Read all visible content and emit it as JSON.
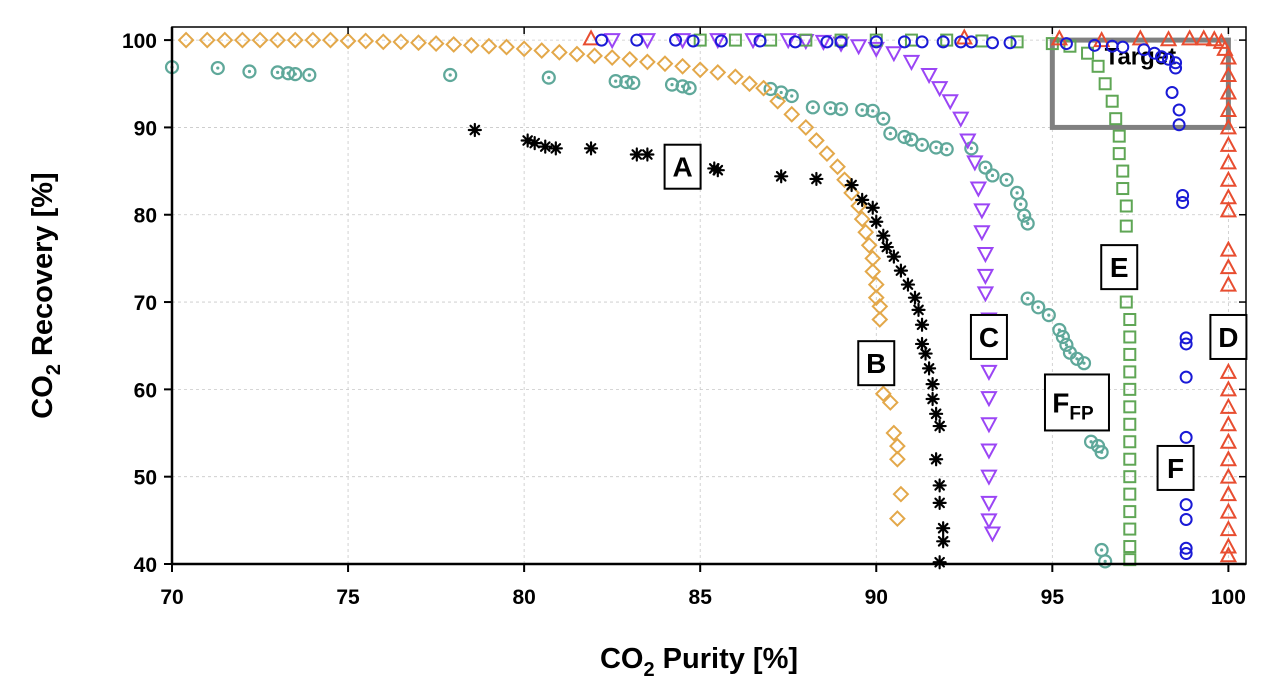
{
  "chart_data": {
    "type": "scatter",
    "xlabel": "CO₂ Purity [%]",
    "ylabel": "CO₂ Recovery [%]",
    "xlim": [
      70,
      100.5
    ],
    "ylim": [
      40,
      101.5
    ],
    "xticks": [
      70,
      75,
      80,
      85,
      90,
      95,
      100
    ],
    "yticks": [
      40,
      50,
      60,
      70,
      80,
      90,
      100
    ],
    "grid": true,
    "legend": "none",
    "target_region": {
      "label": "Target",
      "x": [
        95,
        100
      ],
      "y": [
        90,
        100
      ],
      "color": "#808080"
    },
    "series": [
      {
        "label": "A",
        "marker": "asterisk",
        "color": "#000000",
        "label_pos": [
          84.5,
          85.5
        ],
        "points": [
          [
            78.6,
            89.7
          ],
          [
            80.1,
            88.5
          ],
          [
            80.3,
            88.2
          ],
          [
            80.6,
            87.8
          ],
          [
            80.9,
            87.6
          ],
          [
            81.9,
            87.6
          ],
          [
            83.2,
            86.9
          ],
          [
            83.5,
            86.9
          ],
          [
            85.4,
            85.3
          ],
          [
            85.5,
            85.1
          ],
          [
            87.3,
            84.4
          ],
          [
            88.3,
            84.1
          ],
          [
            89.3,
            83.4
          ],
          [
            89.6,
            81.7
          ],
          [
            89.9,
            80.8
          ],
          [
            90.0,
            79.2
          ],
          [
            90.2,
            77.6
          ],
          [
            90.3,
            76.3
          ],
          [
            90.5,
            75.2
          ],
          [
            90.7,
            73.6
          ],
          [
            90.9,
            72.0
          ],
          [
            91.1,
            70.5
          ],
          [
            91.2,
            69.1
          ],
          [
            91.3,
            67.4
          ],
          [
            91.3,
            65.2
          ],
          [
            91.4,
            64.1
          ],
          [
            91.5,
            62.4
          ],
          [
            91.6,
            60.6
          ],
          [
            91.6,
            58.9
          ],
          [
            91.7,
            57.2
          ],
          [
            91.8,
            55.8
          ],
          [
            91.7,
            52.0
          ],
          [
            91.8,
            49.0
          ],
          [
            91.8,
            47.0
          ],
          [
            91.9,
            44.1
          ],
          [
            91.9,
            42.6
          ],
          [
            91.8,
            40.2
          ]
        ]
      },
      {
        "label": "B",
        "marker": "diamond",
        "color": "#E3A84A",
        "label_pos": [
          90.0,
          63.0
        ],
        "points": [
          [
            70.4,
            100
          ],
          [
            71.0,
            100
          ],
          [
            71.5,
            100
          ],
          [
            72.0,
            100
          ],
          [
            72.5,
            100
          ],
          [
            73.0,
            100
          ],
          [
            73.5,
            100
          ],
          [
            74.0,
            100
          ],
          [
            74.5,
            100
          ],
          [
            75.0,
            99.9
          ],
          [
            75.5,
            99.9
          ],
          [
            76.0,
            99.8
          ],
          [
            76.5,
            99.8
          ],
          [
            77.0,
            99.7
          ],
          [
            77.5,
            99.6
          ],
          [
            78.0,
            99.5
          ],
          [
            78.5,
            99.4
          ],
          [
            79.0,
            99.3
          ],
          [
            79.5,
            99.2
          ],
          [
            80.0,
            99.0
          ],
          [
            80.5,
            98.8
          ],
          [
            81.0,
            98.6
          ],
          [
            81.5,
            98.4
          ],
          [
            82.0,
            98.2
          ],
          [
            82.5,
            98.0
          ],
          [
            83.0,
            97.8
          ],
          [
            83.5,
            97.5
          ],
          [
            84.0,
            97.3
          ],
          [
            84.5,
            97.0
          ],
          [
            85.0,
            96.6
          ],
          [
            85.5,
            96.3
          ],
          [
            86.0,
            95.8
          ],
          [
            86.4,
            95.0
          ],
          [
            86.8,
            94.5
          ],
          [
            87.2,
            93.0
          ],
          [
            87.6,
            91.5
          ],
          [
            88.0,
            90.0
          ],
          [
            88.3,
            88.5
          ],
          [
            88.6,
            87.0
          ],
          [
            88.9,
            85.5
          ],
          [
            89.1,
            84.0
          ],
          [
            89.3,
            82.5
          ],
          [
            89.5,
            81.0
          ],
          [
            89.6,
            79.5
          ],
          [
            89.7,
            78.0
          ],
          [
            89.8,
            76.5
          ],
          [
            89.9,
            75.0
          ],
          [
            89.9,
            73.5
          ],
          [
            90.0,
            72.0
          ],
          [
            90.0,
            70.5
          ],
          [
            90.1,
            69.5
          ],
          [
            90.1,
            68.0
          ],
          [
            90.2,
            59.5
          ],
          [
            90.4,
            58.5
          ],
          [
            90.5,
            55.0
          ],
          [
            90.6,
            53.5
          ],
          [
            90.6,
            52.0
          ],
          [
            90.7,
            48.0
          ],
          [
            90.6,
            45.2
          ]
        ]
      },
      {
        "label": "C",
        "marker": "triangle-down",
        "color": "#9B45F5",
        "label_pos": [
          93.2,
          66.0
        ],
        "points": [
          [
            82.5,
            100
          ],
          [
            83.5,
            100
          ],
          [
            84.5,
            100
          ],
          [
            85.5,
            100
          ],
          [
            86.5,
            100
          ],
          [
            87.5,
            100
          ],
          [
            88.0,
            99.9
          ],
          [
            88.5,
            99.8
          ],
          [
            89.0,
            99.6
          ],
          [
            89.5,
            99.3
          ],
          [
            90.0,
            99.0
          ],
          [
            90.5,
            98.5
          ],
          [
            91.0,
            97.5
          ],
          [
            91.5,
            96.0
          ],
          [
            91.8,
            94.5
          ],
          [
            92.1,
            93.0
          ],
          [
            92.4,
            91.0
          ],
          [
            92.6,
            88.5
          ],
          [
            92.8,
            86.0
          ],
          [
            92.9,
            83.0
          ],
          [
            93.0,
            80.5
          ],
          [
            93.0,
            78.0
          ],
          [
            93.1,
            75.5
          ],
          [
            93.1,
            73.0
          ],
          [
            93.1,
            71.0
          ],
          [
            93.2,
            68.0
          ],
          [
            93.2,
            65.0
          ],
          [
            93.2,
            62.0
          ],
          [
            93.2,
            59.0
          ],
          [
            93.2,
            56.0
          ],
          [
            93.2,
            53.0
          ],
          [
            93.2,
            50.0
          ],
          [
            93.2,
            47.0
          ],
          [
            93.2,
            45.0
          ],
          [
            93.3,
            43.5
          ]
        ]
      },
      {
        "label": "D",
        "marker": "triangle-up",
        "color": "#E84D30",
        "label_pos": [
          100.0,
          66.0
        ],
        "points": [
          [
            81.9,
            100.2
          ],
          [
            92.5,
            100.3
          ],
          [
            95.2,
            100.2
          ],
          [
            96.4,
            100
          ],
          [
            97.5,
            100.2
          ],
          [
            98.3,
            100.1
          ],
          [
            98.9,
            100.2
          ],
          [
            99.3,
            100.2
          ],
          [
            99.6,
            100.1
          ],
          [
            99.8,
            99.8
          ],
          [
            99.9,
            99.0
          ],
          [
            100.0,
            98.0
          ],
          [
            100.0,
            96.0
          ],
          [
            100.0,
            94.0
          ],
          [
            100.0,
            92.0
          ],
          [
            100.0,
            90.0
          ],
          [
            100.0,
            88.0
          ],
          [
            100.0,
            86.0
          ],
          [
            100.0,
            84.0
          ],
          [
            100.0,
            82.0
          ],
          [
            100.0,
            80.5
          ],
          [
            100.0,
            76.0
          ],
          [
            100.0,
            74.0
          ],
          [
            100.0,
            72.0
          ],
          [
            100.0,
            66.0
          ],
          [
            100.0,
            62.0
          ],
          [
            100.0,
            60.0
          ],
          [
            100.0,
            58.0
          ],
          [
            100.0,
            56.0
          ],
          [
            100.0,
            54.0
          ],
          [
            100.0,
            52.0
          ],
          [
            100.0,
            50.0
          ],
          [
            100.0,
            48.0
          ],
          [
            100.0,
            46.0
          ],
          [
            100.0,
            44.0
          ],
          [
            100.0,
            42.0
          ],
          [
            100.0,
            41.0
          ]
        ]
      },
      {
        "label": "E",
        "marker": "square",
        "color": "#5FA655",
        "label_pos": [
          96.9,
          74.0
        ],
        "points": [
          [
            85.0,
            100
          ],
          [
            86.0,
            100
          ],
          [
            87.0,
            100
          ],
          [
            88.0,
            100
          ],
          [
            89.0,
            100
          ],
          [
            90.0,
            100
          ],
          [
            91.0,
            100
          ],
          [
            92.0,
            100
          ],
          [
            93.0,
            99.9
          ],
          [
            94.0,
            99.8
          ],
          [
            95.0,
            99.6
          ],
          [
            95.5,
            99.3
          ],
          [
            96.0,
            98.5
          ],
          [
            96.3,
            97.0
          ],
          [
            96.5,
            95.0
          ],
          [
            96.7,
            93.0
          ],
          [
            96.8,
            91.0
          ],
          [
            96.9,
            89.0
          ],
          [
            96.9,
            87.0
          ],
          [
            97.0,
            85.0
          ],
          [
            97.0,
            83.0
          ],
          [
            97.1,
            81.0
          ],
          [
            97.1,
            78.7
          ],
          [
            97.1,
            70.0
          ],
          [
            97.2,
            68.0
          ],
          [
            97.2,
            66.0
          ],
          [
            97.2,
            64.0
          ],
          [
            97.2,
            62.0
          ],
          [
            97.2,
            60.0
          ],
          [
            97.2,
            58.0
          ],
          [
            97.2,
            56.0
          ],
          [
            97.2,
            54.0
          ],
          [
            97.2,
            52.0
          ],
          [
            97.2,
            50.0
          ],
          [
            97.2,
            48.0
          ],
          [
            97.2,
            46.0
          ],
          [
            97.2,
            44.0
          ],
          [
            97.2,
            42.0
          ],
          [
            97.2,
            40.5
          ]
        ]
      },
      {
        "label": "F",
        "marker": "circle",
        "color": "#1A1AD6",
        "label_pos": [
          98.5,
          51.0
        ],
        "points": [
          [
            82.2,
            100
          ],
          [
            83.2,
            100
          ],
          [
            84.3,
            100
          ],
          [
            84.8,
            99.9
          ],
          [
            85.6,
            99.9
          ],
          [
            86.7,
            99.9
          ],
          [
            87.7,
            99.8
          ],
          [
            88.6,
            99.8
          ],
          [
            89.0,
            99.8
          ],
          [
            90.0,
            99.8
          ],
          [
            90.8,
            99.8
          ],
          [
            91.3,
            99.8
          ],
          [
            91.9,
            99.8
          ],
          [
            92.4,
            99.8
          ],
          [
            92.7,
            99.8
          ],
          [
            93.3,
            99.7
          ],
          [
            93.8,
            99.7
          ],
          [
            95.4,
            99.6
          ],
          [
            96.2,
            99.4
          ],
          [
            96.7,
            99.3
          ],
          [
            97.0,
            99.2
          ],
          [
            97.6,
            98.9
          ],
          [
            97.9,
            98.5
          ],
          [
            98.1,
            98.1
          ],
          [
            98.3,
            97.8
          ],
          [
            98.5,
            97.4
          ],
          [
            98.5,
            96.8
          ],
          [
            98.4,
            94.0
          ],
          [
            98.6,
            92.0
          ],
          [
            98.6,
            90.3
          ],
          [
            98.7,
            82.2
          ],
          [
            98.7,
            81.4
          ],
          [
            98.8,
            65.9
          ],
          [
            98.8,
            65.2
          ],
          [
            98.8,
            61.4
          ],
          [
            98.8,
            54.5
          ],
          [
            98.8,
            46.8
          ],
          [
            98.8,
            45.1
          ],
          [
            98.8,
            41.8
          ],
          [
            98.8,
            41.2
          ]
        ]
      },
      {
        "label": "F",
        "label_sub": "FP",
        "marker": "circle-dot",
        "color": "#5FA89A",
        "label_pos": [
          95.7,
          58.5
        ],
        "points": [
          [
            70.0,
            96.9
          ],
          [
            71.3,
            96.8
          ],
          [
            72.2,
            96.4
          ],
          [
            73.0,
            96.3
          ],
          [
            73.3,
            96.2
          ],
          [
            73.5,
            96.1
          ],
          [
            73.9,
            96.0
          ],
          [
            77.9,
            96.0
          ],
          [
            80.7,
            95.7
          ],
          [
            82.6,
            95.3
          ],
          [
            82.9,
            95.2
          ],
          [
            83.1,
            95.1
          ],
          [
            84.2,
            94.9
          ],
          [
            84.5,
            94.7
          ],
          [
            84.7,
            94.5
          ],
          [
            87.0,
            94.4
          ],
          [
            87.3,
            94.0
          ],
          [
            87.6,
            93.6
          ],
          [
            88.2,
            92.3
          ],
          [
            88.7,
            92.2
          ],
          [
            89.0,
            92.1
          ],
          [
            89.6,
            92.0
          ],
          [
            89.9,
            91.9
          ],
          [
            90.2,
            91.0
          ],
          [
            90.4,
            89.3
          ],
          [
            90.8,
            88.9
          ],
          [
            91.0,
            88.6
          ],
          [
            91.3,
            88.0
          ],
          [
            91.7,
            87.7
          ],
          [
            92.0,
            87.5
          ],
          [
            92.7,
            87.6
          ],
          [
            93.1,
            85.4
          ],
          [
            93.3,
            84.5
          ],
          [
            93.7,
            84.0
          ],
          [
            94.0,
            82.5
          ],
          [
            94.1,
            81.2
          ],
          [
            94.2,
            79.9
          ],
          [
            94.3,
            79.0
          ],
          [
            94.3,
            70.4
          ],
          [
            94.6,
            69.4
          ],
          [
            94.9,
            68.5
          ],
          [
            95.2,
            66.8
          ],
          [
            95.3,
            66.0
          ],
          [
            95.4,
            65.1
          ],
          [
            95.5,
            64.2
          ],
          [
            95.7,
            63.5
          ],
          [
            95.9,
            63.0
          ],
          [
            95.9,
            56.0
          ],
          [
            96.1,
            54.0
          ],
          [
            96.3,
            53.5
          ],
          [
            96.4,
            52.8
          ],
          [
            96.4,
            41.6
          ],
          [
            96.5,
            40.3
          ]
        ]
      }
    ]
  }
}
